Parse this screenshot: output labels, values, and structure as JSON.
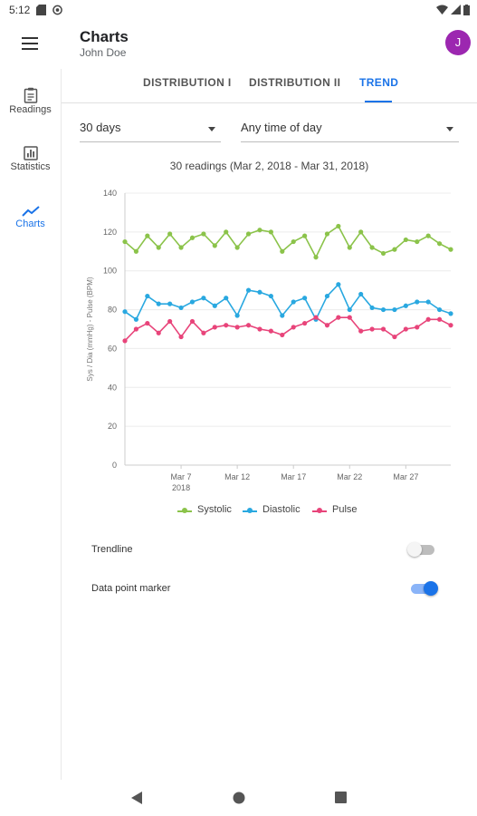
{
  "status_bar": {
    "time": "5:12"
  },
  "app_bar": {
    "title": "Charts",
    "subtitle": "John Doe",
    "avatar_letter": "J"
  },
  "tabs": [
    {
      "label": "DISTRIBUTION I"
    },
    {
      "label": "DISTRIBUTION II"
    },
    {
      "label": "TREND",
      "active": true
    }
  ],
  "nav": [
    {
      "label": "Readings",
      "icon": "clipboard-icon"
    },
    {
      "label": "Statistics",
      "icon": "bar-chart-icon"
    },
    {
      "label": "Charts",
      "icon": "trend-line-icon",
      "active": true
    }
  ],
  "filters": {
    "period": "30 days",
    "time_of_day": "Any time of day"
  },
  "colors": {
    "accent": "#1a73e8",
    "systolic": "#8bc34a",
    "diastolic": "#29a8e0",
    "pulse": "#e8447a",
    "avatar": "#9c27b0"
  },
  "chart_data": {
    "type": "line",
    "title": "30 readings (Mar 2, 2018 - Mar 31, 2018)",
    "ylabel": "Sys / Dia (mmHg) - Pulse (BPM)",
    "ylim": [
      0,
      140
    ],
    "yticks": [
      0,
      20,
      40,
      60,
      80,
      100,
      120,
      140
    ],
    "x": [
      2,
      3,
      4,
      5,
      6,
      7,
      8,
      9,
      10,
      11,
      12,
      13,
      14,
      15,
      16,
      17,
      18,
      19,
      20,
      21,
      22,
      23,
      24,
      25,
      26,
      27,
      28,
      29,
      30,
      31
    ],
    "xlim": [
      2,
      31
    ],
    "xticks": [
      {
        "day": 7,
        "label": "Mar 7",
        "sub": "2018"
      },
      {
        "day": 12,
        "label": "Mar 12"
      },
      {
        "day": 17,
        "label": "Mar 17"
      },
      {
        "day": 22,
        "label": "Mar 22"
      },
      {
        "day": 27,
        "label": "Mar 27"
      }
    ],
    "grid": true,
    "legend": "bottom",
    "series": [
      {
        "name": "Systolic",
        "color": "#8bc34a",
        "values": [
          115,
          110,
          118,
          112,
          119,
          112,
          117,
          119,
          113,
          120,
          112,
          119,
          121,
          120,
          110,
          115,
          118,
          107,
          119,
          123,
          112,
          120,
          112,
          109,
          111,
          116,
          115,
          118,
          114,
          111
        ]
      },
      {
        "name": "Diastolic",
        "color": "#29a8e0",
        "values": [
          79,
          75,
          87,
          83,
          83,
          81,
          84,
          86,
          82,
          86,
          77,
          90,
          89,
          87,
          77,
          84,
          86,
          75,
          87,
          93,
          80,
          88,
          81,
          80,
          80,
          82,
          84,
          84,
          80,
          78
        ]
      },
      {
        "name": "Pulse",
        "color": "#e8447a",
        "values": [
          64,
          70,
          73,
          68,
          74,
          66,
          74,
          68,
          71,
          72,
          71,
          72,
          70,
          69,
          67,
          71,
          73,
          76,
          72,
          76,
          76,
          69,
          70,
          70,
          66,
          70,
          71,
          75,
          75,
          72
        ]
      }
    ]
  },
  "settings": [
    {
      "label": "Trendline",
      "on": false
    },
    {
      "label": "Data point marker",
      "on": true
    }
  ]
}
